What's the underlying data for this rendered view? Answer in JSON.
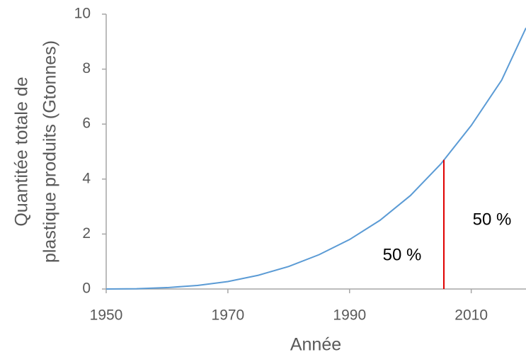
{
  "chart_data": {
    "type": "line",
    "ylabel": [
      "Quantitée totale de",
      "plastique produits (Gtonnes)"
    ],
    "xlabel": "Année",
    "x": [
      1950,
      1955,
      1960,
      1965,
      1970,
      1975,
      1980,
      1985,
      1990,
      1995,
      2000,
      2005,
      2010,
      2015,
      2019
    ],
    "values": [
      0,
      0.01,
      0.05,
      0.13,
      0.27,
      0.5,
      0.82,
      1.25,
      1.8,
      2.5,
      3.4,
      4.55,
      5.95,
      7.6,
      9.5
    ],
    "color": "#5b9bd5",
    "xlim": [
      1950,
      2019
    ],
    "xticks": [
      1950,
      1970,
      1990,
      2010
    ],
    "ylim": [
      0,
      10
    ],
    "yticks": [
      0,
      2,
      4,
      6,
      8,
      10
    ],
    "grid": false,
    "marker": {
      "x": 2005.5,
      "y": 4.7,
      "color": "#e00000"
    },
    "annotations": [
      "50 %",
      "50 %"
    ]
  }
}
